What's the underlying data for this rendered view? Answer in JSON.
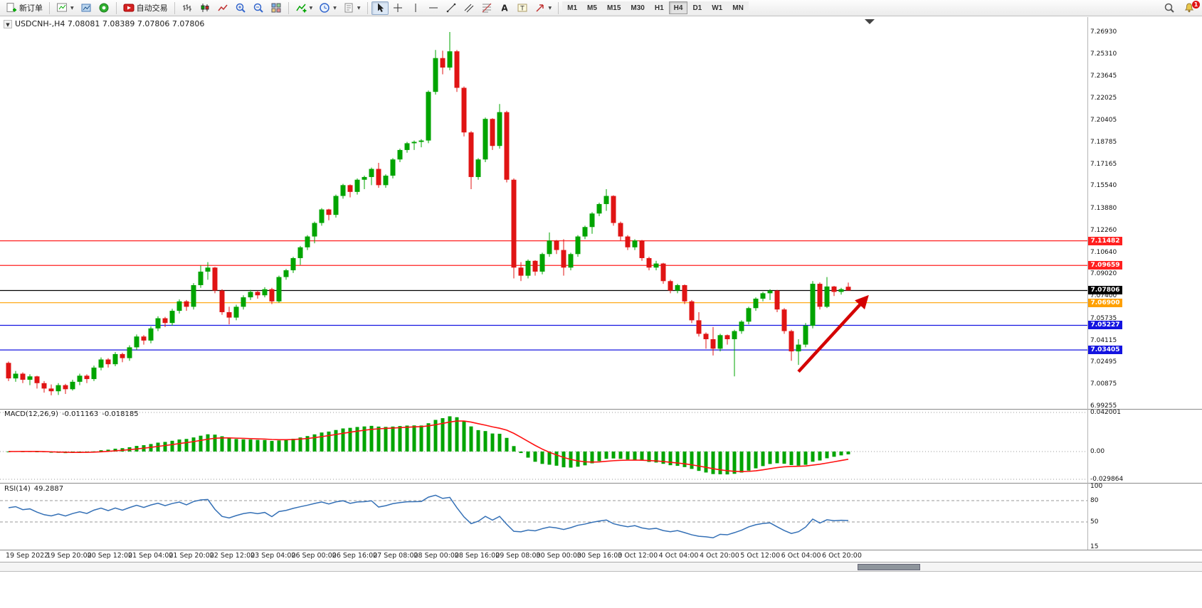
{
  "toolbar": {
    "new_order_label": "新订单",
    "auto_trading_label": "自动交易",
    "timeframes": [
      "M1",
      "M5",
      "M15",
      "M30",
      "H1",
      "H4",
      "D1",
      "W1",
      "MN"
    ],
    "active_timeframe": "H4",
    "notification_count": "1"
  },
  "icons": {
    "collapse": "▼",
    "caret": "▼"
  },
  "chart": {
    "title": "USDCNH-,H4 7.08081 7.08389 7.07806 7.07806",
    "symbol": "USDCNH-",
    "period": "H4",
    "open": "7.08081",
    "high": "7.08389",
    "low": "7.07806",
    "close": "7.07806"
  },
  "price_scale": [
    "7.26930",
    "7.25310",
    "7.23645",
    "7.22025",
    "7.20405",
    "7.18785",
    "7.17165",
    "7.15540",
    "7.13880",
    "7.12260",
    "7.10640",
    "7.09020",
    "7.07400",
    "7.05735",
    "7.04115",
    "7.02495",
    "7.00875",
    "6.99255"
  ],
  "hlines": [
    {
      "name": "resistance-1",
      "price": 7.11482,
      "label": "7.11482",
      "color": "#FF2020"
    },
    {
      "name": "resistance-2",
      "price": 7.09659,
      "label": "7.09659",
      "color": "#FF2020"
    },
    {
      "name": "current-price",
      "price": 7.07806,
      "label": "7.07806",
      "color": "#000000"
    },
    {
      "name": "pivot-orange",
      "price": 7.069,
      "label": "7.06900",
      "color": "#FFA000"
    },
    {
      "name": "support-1",
      "price": 7.05227,
      "label": "7.05227",
      "color": "#1414E0"
    },
    {
      "name": "support-2",
      "price": 7.03405,
      "label": "7.03405",
      "color": "#1414E0"
    }
  ],
  "macd": {
    "label": "MACD(12,26,9)",
    "value_main": "-0.011163",
    "value_signal": "-0.018185",
    "scale_max": 0.042001,
    "scale_min": -0.029864,
    "scale_labels": [
      "0.042001",
      "0.00",
      "-0.029864"
    ]
  },
  "rsi": {
    "label": "RSI(14)",
    "value": "49.2887",
    "scale_max": 100,
    "scale_min": 15,
    "scale_labels": [
      "100",
      "80",
      "50",
      "15"
    ],
    "levels": [
      80,
      50
    ]
  },
  "time_axis": [
    "19 Sep 2022",
    "19 Sep 20:00",
    "20 Sep 12:00",
    "21 Sep 04:00",
    "21 Sep 20:00",
    "22 Sep 12:00",
    "23 Sep 04:00",
    "26 Sep 00:00",
    "26 Sep 16:00",
    "27 Sep 08:00",
    "28 Sep 00:00",
    "28 Sep 16:00",
    "29 Sep 08:00",
    "30 Sep 00:00",
    "30 Sep 16:00",
    "3 Oct 12:00",
    "4 Oct 04:00",
    "4 Oct 20:00",
    "5 Oct 12:00",
    "6 Oct 04:00",
    "6 Oct 20:00"
  ],
  "annotation_arrow": {
    "from_bar": 111,
    "from_price": 7.018,
    "to_bar": 120.5,
    "to_price": 7.0725,
    "color": "#D40000"
  },
  "colors": {
    "bull": "#00A400",
    "bear": "#E01414",
    "macd_hist": "#00A400",
    "macd_signal": "#FF1111",
    "rsi_line": "#3470B6",
    "grid_dot": "#999999"
  },
  "chart_data": {
    "type": "candlestick",
    "symbol": "USDCNH-",
    "period": "H4",
    "price_min": 6.99255,
    "price_max": 7.2693,
    "candles": [
      [
        7.0245,
        7.0255,
        7.011,
        7.013
      ],
      [
        7.013,
        7.0185,
        7.0105,
        7.0165
      ],
      [
        7.0165,
        7.0175,
        7.0095,
        7.012
      ],
      [
        7.012,
        7.016,
        7.008,
        7.0145
      ],
      [
        7.0145,
        7.015,
        7.0055,
        7.0095
      ],
      [
        7.0095,
        7.011,
        7.0025,
        7.0055
      ],
      [
        7.0055,
        7.0085,
        7.0005,
        7.0035
      ],
      [
        7.0035,
        7.0095,
        7.0008,
        7.008
      ],
      [
        7.008,
        7.009,
        7.0015,
        7.005
      ],
      [
        7.005,
        7.012,
        7.004,
        7.0105
      ],
      [
        7.0105,
        7.0165,
        7.008,
        7.015
      ],
      [
        7.015,
        7.016,
        7.0095,
        7.0125
      ],
      [
        7.0125,
        7.0225,
        7.011,
        7.021
      ],
      [
        7.021,
        7.0285,
        7.019,
        7.027
      ],
      [
        7.027,
        7.028,
        7.021,
        7.0235
      ],
      [
        7.0235,
        7.0325,
        7.022,
        7.031
      ],
      [
        7.031,
        7.032,
        7.025,
        7.028
      ],
      [
        7.028,
        7.0375,
        7.026,
        7.036
      ],
      [
        7.036,
        7.0455,
        7.034,
        7.044
      ],
      [
        7.044,
        7.045,
        7.038,
        7.041
      ],
      [
        7.041,
        7.0515,
        7.039,
        7.05
      ],
      [
        7.05,
        7.059,
        7.048,
        7.0575
      ],
      [
        7.0575,
        7.0585,
        7.051,
        7.054
      ],
      [
        7.054,
        7.0645,
        7.052,
        7.063
      ],
      [
        7.063,
        7.0715,
        7.061,
        7.07
      ],
      [
        7.07,
        7.071,
        7.063,
        7.066
      ],
      [
        7.066,
        7.0835,
        7.064,
        7.082
      ],
      [
        7.082,
        7.0965,
        7.08,
        7.092
      ],
      [
        7.092,
        7.099,
        7.086,
        7.095
      ],
      [
        7.095,
        7.0955,
        7.076,
        7.078
      ],
      [
        7.078,
        7.079,
        7.06,
        7.062
      ],
      [
        7.062,
        7.066,
        7.053,
        7.058
      ],
      [
        7.058,
        7.0675,
        7.056,
        7.066
      ],
      [
        7.066,
        7.0745,
        7.064,
        7.073
      ],
      [
        7.073,
        7.0785,
        7.071,
        7.077
      ],
      [
        7.077,
        7.078,
        7.072,
        7.0745
      ],
      [
        7.0745,
        7.0805,
        7.073,
        7.079
      ],
      [
        7.079,
        7.08,
        7.068,
        7.07
      ],
      [
        7.07,
        7.089,
        7.069,
        7.088
      ],
      [
        7.088,
        7.094,
        7.086,
        7.093
      ],
      [
        7.093,
        7.103,
        7.091,
        7.102
      ],
      [
        7.102,
        7.111,
        7.097,
        7.11
      ],
      [
        7.11,
        7.119,
        7.108,
        7.118
      ],
      [
        7.118,
        7.129,
        7.113,
        7.128
      ],
      [
        7.128,
        7.139,
        7.126,
        7.138
      ],
      [
        7.138,
        7.1385,
        7.13,
        7.134
      ],
      [
        7.134,
        7.149,
        7.132,
        7.148
      ],
      [
        7.148,
        7.157,
        7.146,
        7.156
      ],
      [
        7.156,
        7.1565,
        7.147,
        7.151
      ],
      [
        7.151,
        7.161,
        7.149,
        7.16
      ],
      [
        7.16,
        7.163,
        7.153,
        7.162
      ],
      [
        7.162,
        7.169,
        7.156,
        7.168
      ],
      [
        7.168,
        7.1725,
        7.154,
        7.156
      ],
      [
        7.156,
        7.164,
        7.154,
        7.163
      ],
      [
        7.163,
        7.176,
        7.161,
        7.175
      ],
      [
        7.175,
        7.183,
        7.173,
        7.182
      ],
      [
        7.182,
        7.188,
        7.18,
        7.187
      ],
      [
        7.187,
        7.189,
        7.182,
        7.188
      ],
      [
        7.188,
        7.19,
        7.184,
        7.189
      ],
      [
        7.189,
        7.226,
        7.187,
        7.225
      ],
      [
        7.225,
        7.256,
        7.223,
        7.25
      ],
      [
        7.25,
        7.2555,
        7.238,
        7.243
      ],
      [
        7.243,
        7.2693,
        7.241,
        7.255
      ],
      [
        7.255,
        7.256,
        7.225,
        7.228
      ],
      [
        7.228,
        7.229,
        7.192,
        7.195
      ],
      [
        7.195,
        7.196,
        7.153,
        7.162
      ],
      [
        7.162,
        7.176,
        7.16,
        7.175
      ],
      [
        7.175,
        7.206,
        7.173,
        7.205
      ],
      [
        7.205,
        7.2055,
        7.182,
        7.185
      ],
      [
        7.185,
        7.216,
        7.183,
        7.21
      ],
      [
        7.21,
        7.211,
        7.158,
        7.16
      ],
      [
        7.16,
        7.161,
        7.087,
        7.095
      ],
      [
        7.095,
        7.099,
        7.085,
        7.089
      ],
      [
        7.089,
        7.101,
        7.087,
        7.1
      ],
      [
        7.1,
        7.1005,
        7.089,
        7.092
      ],
      [
        7.092,
        7.106,
        7.09,
        7.105
      ],
      [
        7.105,
        7.121,
        7.103,
        7.115
      ],
      [
        7.115,
        7.1155,
        7.105,
        7.108
      ],
      [
        7.108,
        7.116,
        7.089,
        7.095
      ],
      [
        7.095,
        7.106,
        7.093,
        7.105
      ],
      [
        7.105,
        7.119,
        7.103,
        7.118
      ],
      [
        7.118,
        7.126,
        7.116,
        7.125
      ],
      [
        7.125,
        7.136,
        7.12,
        7.135
      ],
      [
        7.135,
        7.143,
        7.133,
        7.142
      ],
      [
        7.142,
        7.153,
        7.137,
        7.148
      ],
      [
        7.148,
        7.1485,
        7.126,
        7.128
      ],
      [
        7.128,
        7.129,
        7.115,
        7.118
      ],
      [
        7.118,
        7.119,
        7.108,
        7.11
      ],
      [
        7.11,
        7.116,
        7.108,
        7.115
      ],
      [
        7.115,
        7.1155,
        7.1,
        7.102
      ],
      [
        7.102,
        7.103,
        7.093,
        7.095
      ],
      [
        7.095,
        7.1,
        7.093,
        7.098
      ],
      [
        7.098,
        7.0985,
        7.083,
        7.085
      ],
      [
        7.085,
        7.086,
        7.076,
        7.078
      ],
      [
        7.078,
        7.083,
        7.076,
        7.082
      ],
      [
        7.082,
        7.0825,
        7.068,
        7.07
      ],
      [
        7.07,
        7.071,
        7.054,
        7.056
      ],
      [
        7.056,
        7.062,
        7.044,
        7.046
      ],
      [
        7.046,
        7.047,
        7.035,
        7.042
      ],
      [
        7.042,
        7.051,
        7.03,
        7.035
      ],
      [
        7.035,
        7.046,
        7.033,
        7.045
      ],
      [
        7.045,
        7.0455,
        7.038,
        7.042
      ],
      [
        7.042,
        7.049,
        7.0145,
        7.048
      ],
      [
        7.048,
        7.056,
        7.046,
        7.055
      ],
      [
        7.055,
        7.066,
        7.053,
        7.065
      ],
      [
        7.065,
        7.073,
        7.063,
        7.072
      ],
      [
        7.072,
        7.077,
        7.07,
        7.076
      ],
      [
        7.076,
        7.079,
        7.071,
        7.078
      ],
      [
        7.078,
        7.0785,
        7.062,
        7.064
      ],
      [
        7.064,
        7.065,
        7.046,
        7.048
      ],
      [
        7.048,
        7.049,
        7.026,
        7.033
      ],
      [
        7.033,
        7.042,
        7.023,
        7.038
      ],
      [
        7.038,
        7.054,
        7.036,
        7.052
      ],
      [
        7.052,
        7.085,
        7.05,
        7.083
      ],
      [
        7.083,
        7.084,
        7.064,
        7.066
      ],
      [
        7.066,
        7.088,
        7.065,
        7.081
      ],
      [
        7.081,
        7.0815,
        7.074,
        7.077
      ],
      [
        7.077,
        7.08,
        7.075,
        7.079
      ],
      [
        7.08081,
        7.08389,
        7.07806,
        7.07806
      ]
    ]
  }
}
